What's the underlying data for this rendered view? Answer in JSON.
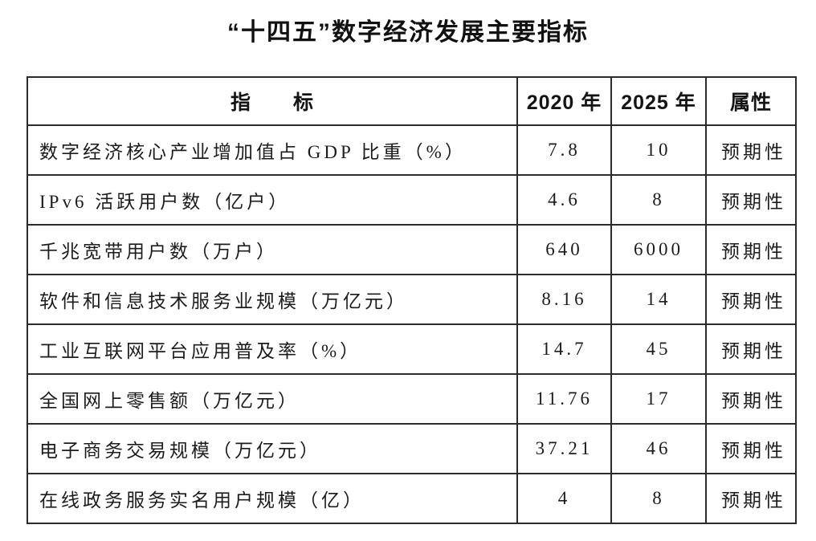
{
  "title": "“十四五”数字经济发展主要指标",
  "table": {
    "headers": {
      "indicator": "指　　标",
      "y2020": "2020 年",
      "y2025": "2025 年",
      "attribute": "属性"
    },
    "rows": [
      {
        "indicator": "数字经济核心产业增加值占 GDP 比重（%）",
        "y2020": "7.8",
        "y2025": "10",
        "attribute": "预期性"
      },
      {
        "indicator": "IPv6 活跃用户数（亿户）",
        "y2020": "4.6",
        "y2025": "8",
        "attribute": "预期性"
      },
      {
        "indicator": "千兆宽带用户数（万户）",
        "y2020": "640",
        "y2025": "6000",
        "attribute": "预期性"
      },
      {
        "indicator": "软件和信息技术服务业规模（万亿元）",
        "y2020": "8.16",
        "y2025": "14",
        "attribute": "预期性"
      },
      {
        "indicator": "工业互联网平台应用普及率（%）",
        "y2020": "14.7",
        "y2025": "45",
        "attribute": "预期性"
      },
      {
        "indicator": "全国网上零售额（万亿元）",
        "y2020": "11.76",
        "y2025": "17",
        "attribute": "预期性"
      },
      {
        "indicator": "电子商务交易规模（万亿元）",
        "y2020": "37.21",
        "y2025": "46",
        "attribute": "预期性"
      },
      {
        "indicator": "在线政务服务实名用户规模（亿）",
        "y2020": "4",
        "y2025": "8",
        "attribute": "预期性"
      }
    ]
  },
  "chart_data": {
    "type": "table",
    "title": "“十四五”数字经济发展主要指标",
    "columns": [
      "指标",
      "2020 年",
      "2025 年",
      "属性"
    ],
    "rows": [
      [
        "数字经济核心产业增加值占 GDP 比重（%）",
        7.8,
        10,
        "预期性"
      ],
      [
        "IPv6 活跃用户数（亿户）",
        4.6,
        8,
        "预期性"
      ],
      [
        "千兆宽带用户数（万户）",
        640,
        6000,
        "预期性"
      ],
      [
        "软件和信息技术服务业规模（万亿元）",
        8.16,
        14,
        "预期性"
      ],
      [
        "工业互联网平台应用普及率（%）",
        14.7,
        45,
        "预期性"
      ],
      [
        "全国网上零售额（万亿元）",
        11.76,
        17,
        "预期性"
      ],
      [
        "电子商务交易规模（万亿元）",
        37.21,
        46,
        "预期性"
      ],
      [
        "在线政务服务实名用户规模（亿）",
        4,
        8,
        "预期性"
      ]
    ]
  },
  "colors": {
    "background": "#ffffff",
    "text": "#1c1c1c",
    "border": "#2b2b2b"
  }
}
